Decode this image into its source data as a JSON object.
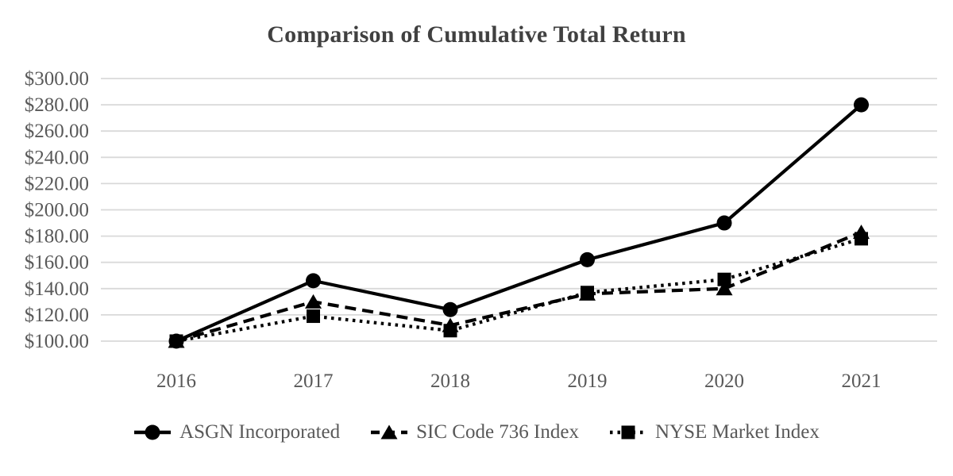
{
  "title": "Comparison of Cumulative Total Return",
  "chart_data": {
    "type": "line",
    "title": "Comparison of Cumulative Total Return",
    "categories": [
      "2016",
      "2017",
      "2018",
      "2019",
      "2020",
      "2021"
    ],
    "series": [
      {
        "name": "ASGN Incorporated",
        "marker": "circle",
        "line_style": "solid",
        "values": [
          100,
          146,
          124,
          162,
          190,
          280
        ]
      },
      {
        "name": "SIC Code 736 Index",
        "marker": "triangle",
        "line_style": "dashed",
        "values": [
          100,
          130,
          112,
          136,
          140,
          183
        ]
      },
      {
        "name": "NYSE Market Index",
        "marker": "square",
        "line_style": "dotted",
        "values": [
          100,
          119,
          108,
          137,
          147,
          178
        ]
      }
    ],
    "xlabel": "",
    "ylabel": "",
    "ylim": [
      100,
      300
    ],
    "ytick_step": 20,
    "ytick_labels": [
      "$100.00",
      "$120.00",
      "$140.00",
      "$160.00",
      "$180.00",
      "$200.00",
      "$220.00",
      "$240.00",
      "$260.00",
      "$280.00",
      "$300.00"
    ],
    "grid": "horizontal-only",
    "legend_position": "bottom",
    "colors": {
      "series": "#000000",
      "gridline": "#D9D9D9",
      "tick_label": "#595959",
      "legend_text": "#595959",
      "title": "#404040",
      "background": "#FFFFFF"
    }
  }
}
